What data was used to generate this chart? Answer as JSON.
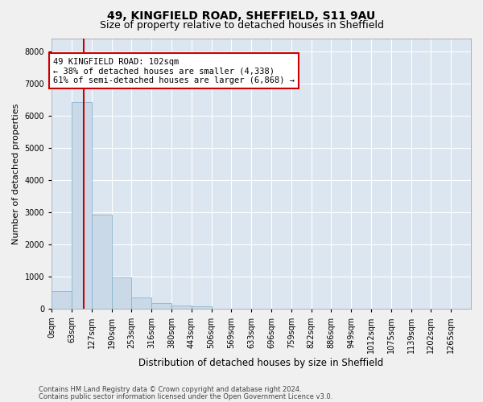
{
  "title1": "49, KINGFIELD ROAD, SHEFFIELD, S11 9AU",
  "title2": "Size of property relative to detached houses in Sheffield",
  "xlabel": "Distribution of detached houses by size in Sheffield",
  "ylabel": "Number of detached properties",
  "bin_labels": [
    "0sqm",
    "63sqm",
    "127sqm",
    "190sqm",
    "253sqm",
    "316sqm",
    "380sqm",
    "443sqm",
    "506sqm",
    "569sqm",
    "633sqm",
    "696sqm",
    "759sqm",
    "822sqm",
    "886sqm",
    "949sqm",
    "1012sqm",
    "1075sqm",
    "1139sqm",
    "1202sqm",
    "1265sqm"
  ],
  "bar_heights": [
    560,
    6430,
    2920,
    990,
    360,
    175,
    115,
    95,
    0,
    0,
    0,
    0,
    0,
    0,
    0,
    0,
    0,
    0,
    0,
    0,
    0
  ],
  "bar_color": "#c9d9e8",
  "bar_edge_color": "#8cb4d0",
  "vline_x": 102,
  "bin_width": 63,
  "annotation_line1": "49 KINGFIELD ROAD: 102sqm",
  "annotation_line2": "← 38% of detached houses are smaller (4,338)",
  "annotation_line3": "61% of semi-detached houses are larger (6,868) →",
  "annotation_box_color": "#ffffff",
  "annotation_box_edge": "#cc0000",
  "vline_color": "#cc0000",
  "footnote1": "Contains HM Land Registry data © Crown copyright and database right 2024.",
  "footnote2": "Contains public sector information licensed under the Open Government Licence v3.0.",
  "ylim": [
    0,
    8400
  ],
  "yticks": [
    0,
    1000,
    2000,
    3000,
    4000,
    5000,
    6000,
    7000,
    8000
  ],
  "background_color": "#dce6f0",
  "grid_color": "#ffffff",
  "fig_bg_color": "#f0f0f0",
  "title1_fontsize": 10,
  "title2_fontsize": 9,
  "tick_fontsize": 7,
  "ylabel_fontsize": 8,
  "xlabel_fontsize": 8.5,
  "annotation_fontsize": 7.5,
  "footnote_fontsize": 6
}
